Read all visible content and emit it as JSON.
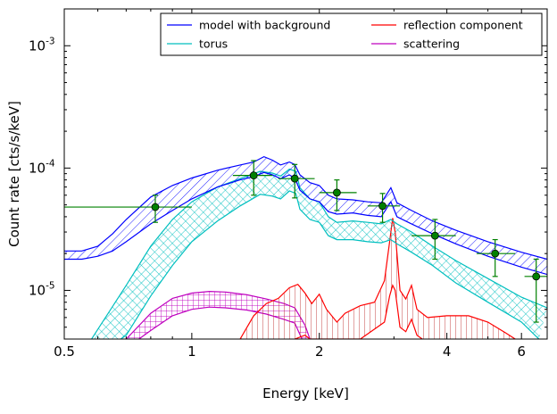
{
  "chart_data": {
    "type": "line",
    "xlabel": "Energy [keV]",
    "ylabel": "Count rate [cts/s/keV]",
    "x_scale": "log",
    "y_scale": "log",
    "xlim": [
      0.5,
      6.9
    ],
    "ylim": [
      4e-06,
      0.002
    ],
    "x_ticks": [
      {
        "value": 0.5,
        "label": "0.5"
      },
      {
        "value": 1,
        "label": "1"
      },
      {
        "value": 2,
        "label": "2"
      },
      {
        "value": 4,
        "label": "4"
      },
      {
        "value": 6,
        "label": "6"
      }
    ],
    "y_ticks": [
      {
        "value": 1e-05,
        "base": "10",
        "exp": "-5"
      },
      {
        "value": 0.0001,
        "base": "10",
        "exp": "-4"
      },
      {
        "value": 0.001,
        "base": "10",
        "exp": "-3"
      }
    ],
    "legend": {
      "placement": "top-right",
      "columns": 2,
      "entries": [
        {
          "label": "model with background",
          "color": "#0000ff"
        },
        {
          "label": "reflection component",
          "color": "#ff0000"
        },
        {
          "label": "torus",
          "color": "#00bfbf"
        },
        {
          "label": "scattering",
          "color": "#bf00bf"
        }
      ]
    },
    "series": [
      {
        "name": "model with background",
        "color": "#0000ff",
        "hatch": "diagonal",
        "upper": [
          [
            0.5,
            2.1e-05
          ],
          [
            0.55,
            2.1e-05
          ],
          [
            0.6,
            2.3e-05
          ],
          [
            0.65,
            2.9e-05
          ],
          [
            0.7,
            3.8e-05
          ],
          [
            0.8,
            5.8e-05
          ],
          [
            0.9,
            7.2e-05
          ],
          [
            1.0,
            8.3e-05
          ],
          [
            1.15,
            9.6e-05
          ],
          [
            1.3,
            0.000106
          ],
          [
            1.4,
            0.000112
          ],
          [
            1.48,
            0.000124
          ],
          [
            1.55,
            0.000116
          ],
          [
            1.62,
            0.000106
          ],
          [
            1.7,
            0.000112
          ],
          [
            1.75,
            0.000107
          ],
          [
            1.8,
            8.8e-05
          ],
          [
            1.9,
            7.6e-05
          ],
          [
            2.0,
            7.2e-05
          ],
          [
            2.1,
            6e-05
          ],
          [
            2.2,
            5.6e-05
          ],
          [
            2.4,
            5.5e-05
          ],
          [
            2.6,
            5.3e-05
          ],
          [
            2.8,
            5.2e-05
          ],
          [
            2.95,
            6.9e-05
          ],
          [
            3.05,
            5.2e-05
          ],
          [
            3.3,
            4.5e-05
          ],
          [
            3.7,
            3.7e-05
          ],
          [
            4.2,
            3.1e-05
          ],
          [
            5.0,
            2.5e-05
          ],
          [
            6.0,
            2.05e-05
          ],
          [
            6.9,
            1.8e-05
          ]
        ],
        "lower": [
          [
            0.5,
            1.8e-05
          ],
          [
            0.55,
            1.8e-05
          ],
          [
            0.6,
            1.9e-05
          ],
          [
            0.65,
            2.1e-05
          ],
          [
            0.7,
            2.5e-05
          ],
          [
            0.8,
            3.5e-05
          ],
          [
            0.9,
            4.5e-05
          ],
          [
            1.0,
            5.6e-05
          ],
          [
            1.15,
            7e-05
          ],
          [
            1.3,
            8e-05
          ],
          [
            1.4,
            8.5e-05
          ],
          [
            1.48,
            9.2e-05
          ],
          [
            1.55,
            8.8e-05
          ],
          [
            1.62,
            8.2e-05
          ],
          [
            1.7,
            8.8e-05
          ],
          [
            1.75,
            8.3e-05
          ],
          [
            1.8,
            6.6e-05
          ],
          [
            1.9,
            5.6e-05
          ],
          [
            2.0,
            5.3e-05
          ],
          [
            2.1,
            4.4e-05
          ],
          [
            2.2,
            4.2e-05
          ],
          [
            2.4,
            4.3e-05
          ],
          [
            2.6,
            4.1e-05
          ],
          [
            2.8,
            4e-05
          ],
          [
            2.95,
            5.3e-05
          ],
          [
            3.05,
            4e-05
          ],
          [
            3.3,
            3.5e-05
          ],
          [
            3.7,
            2.9e-05
          ],
          [
            4.2,
            2.4e-05
          ],
          [
            5.0,
            1.9e-05
          ],
          [
            6.0,
            1.55e-05
          ],
          [
            6.9,
            1.35e-05
          ]
        ]
      },
      {
        "name": "torus",
        "color": "#00bfbf",
        "hatch": "cross",
        "upper": [
          [
            0.58,
            4e-06
          ],
          [
            0.6,
            4.8e-06
          ],
          [
            0.7,
            1.1e-05
          ],
          [
            0.8,
            2.3e-05
          ],
          [
            0.9,
            3.8e-05
          ],
          [
            1.0,
            5.3e-05
          ],
          [
            1.15,
            7e-05
          ],
          [
            1.3,
            8.2e-05
          ],
          [
            1.45,
            9.4e-05
          ],
          [
            1.55,
            9.1e-05
          ],
          [
            1.62,
            8.6e-05
          ],
          [
            1.7,
            9.8e-05
          ],
          [
            1.76,
            9.4e-05
          ],
          [
            1.8,
            6.9e-05
          ],
          [
            1.9,
            5.6e-05
          ],
          [
            2.0,
            5.3e-05
          ],
          [
            2.1,
            4e-05
          ],
          [
            2.2,
            3.6e-05
          ],
          [
            2.4,
            3.7e-05
          ],
          [
            2.6,
            3.6e-05
          ],
          [
            2.8,
            3.5e-05
          ],
          [
            2.95,
            3.8e-05
          ],
          [
            3.05,
            3.5e-05
          ],
          [
            3.3,
            3e-05
          ],
          [
            3.7,
            2.3e-05
          ],
          [
            4.2,
            1.75e-05
          ],
          [
            5.0,
            1.25e-05
          ],
          [
            6.0,
            8.8e-06
          ],
          [
            6.9,
            7.2e-06
          ]
        ],
        "lower": [
          [
            0.68,
            4e-06
          ],
          [
            0.7,
            4.3e-06
          ],
          [
            0.8,
            9e-06
          ],
          [
            0.9,
            1.6e-05
          ],
          [
            1.0,
            2.5e-05
          ],
          [
            1.15,
            3.7e-05
          ],
          [
            1.3,
            4.9e-05
          ],
          [
            1.45,
            6.1e-05
          ],
          [
            1.55,
            5.9e-05
          ],
          [
            1.62,
            5.6e-05
          ],
          [
            1.7,
            6.5e-05
          ],
          [
            1.76,
            6.2e-05
          ],
          [
            1.8,
            4.6e-05
          ],
          [
            1.9,
            3.8e-05
          ],
          [
            2.0,
            3.6e-05
          ],
          [
            2.1,
            2.8e-05
          ],
          [
            2.2,
            2.6e-05
          ],
          [
            2.4,
            2.6e-05
          ],
          [
            2.6,
            2.5e-05
          ],
          [
            2.8,
            2.45e-05
          ],
          [
            2.95,
            2.6e-05
          ],
          [
            3.05,
            2.4e-05
          ],
          [
            3.3,
            2.05e-05
          ],
          [
            3.7,
            1.6e-05
          ],
          [
            4.2,
            1.15e-05
          ],
          [
            5.0,
            8e-06
          ],
          [
            6.0,
            5.5e-06
          ],
          [
            6.5,
            4.2e-06
          ],
          [
            6.6,
            4e-06
          ]
        ]
      },
      {
        "name": "scattering",
        "color": "#bf00bf",
        "hatch": "grid",
        "upper": [
          [
            0.7,
            4e-06
          ],
          [
            0.8,
            6.5e-06
          ],
          [
            0.9,
            8.6e-06
          ],
          [
            1.0,
            9.5e-06
          ],
          [
            1.1,
            9.8e-06
          ],
          [
            1.2,
            9.7e-06
          ],
          [
            1.35,
            9.2e-06
          ],
          [
            1.5,
            8.5e-06
          ],
          [
            1.65,
            7.8e-06
          ],
          [
            1.75,
            7.2e-06
          ],
          [
            1.85,
            5.2e-06
          ],
          [
            1.9,
            4e-06
          ]
        ],
        "lower": [
          [
            0.75,
            4e-06
          ],
          [
            0.8,
            4.7e-06
          ],
          [
            0.9,
            6.2e-06
          ],
          [
            1.0,
            7e-06
          ],
          [
            1.1,
            7.3e-06
          ],
          [
            1.2,
            7.2e-06
          ],
          [
            1.35,
            6.9e-06
          ],
          [
            1.5,
            6.4e-06
          ],
          [
            1.65,
            5.8e-06
          ],
          [
            1.75,
            5.4e-06
          ],
          [
            1.82,
            4e-06
          ]
        ]
      },
      {
        "name": "reflection component",
        "color": "#ff0000",
        "hatch": "vertical",
        "upper": [
          [
            1.3,
            4e-06
          ],
          [
            1.4,
            6.2e-06
          ],
          [
            1.5,
            7.8e-06
          ],
          [
            1.6,
            8.6e-06
          ],
          [
            1.7,
            1.05e-05
          ],
          [
            1.78,
            1.12e-05
          ],
          [
            1.85,
            9.5e-06
          ],
          [
            1.92,
            7.8e-06
          ],
          [
            2.0,
            9.3e-06
          ],
          [
            2.08,
            7e-06
          ],
          [
            2.2,
            5.5e-06
          ],
          [
            2.3,
            6.5e-06
          ],
          [
            2.5,
            7.5e-06
          ],
          [
            2.7,
            8e-06
          ],
          [
            2.85,
            1.2e-05
          ],
          [
            2.93,
            2.5e-05
          ],
          [
            2.98,
            3.9e-05
          ],
          [
            3.02,
            3e-05
          ],
          [
            3.1,
            1e-05
          ],
          [
            3.2,
            8.5e-06
          ],
          [
            3.3,
            1.1e-05
          ],
          [
            3.4,
            7e-06
          ],
          [
            3.6,
            6e-06
          ],
          [
            4.0,
            6.2e-06
          ],
          [
            4.5,
            6.2e-06
          ],
          [
            5.0,
            5.5e-06
          ],
          [
            5.5,
            4.5e-06
          ],
          [
            5.8,
            4e-06
          ]
        ],
        "lower": [
          [
            1.75,
            4e-06
          ],
          [
            1.85,
            4.3e-06
          ],
          [
            1.9,
            4e-06
          ],
          [
            2.5,
            4e-06
          ],
          [
            2.85,
            5.5e-06
          ],
          [
            2.93,
            9e-06
          ],
          [
            2.98,
            1.1e-05
          ],
          [
            3.02,
            1e-05
          ],
          [
            3.1,
            5e-06
          ],
          [
            3.2,
            4.6e-06
          ],
          [
            3.3,
            5.8e-06
          ],
          [
            3.4,
            4.3e-06
          ],
          [
            3.5,
            4e-06
          ]
        ]
      }
    ],
    "data_points": {
      "name": "data",
      "color": "#008000",
      "points": [
        {
          "x": 0.82,
          "y": 4.8e-05,
          "xerr": [
            0.5,
            1.0
          ],
          "yerr": [
            3.6e-05,
            6e-05
          ]
        },
        {
          "x": 1.4,
          "y": 8.7e-05,
          "xerr": [
            1.25,
            1.55
          ],
          "yerr": [
            6e-05,
            0.000115
          ]
        },
        {
          "x": 1.75,
          "y": 8.2e-05,
          "xerr": [
            1.6,
            1.95
          ],
          "yerr": [
            5.7e-05,
            0.000107
          ]
        },
        {
          "x": 2.2,
          "y": 6.3e-05,
          "xerr": [
            2.0,
            2.45
          ],
          "yerr": [
            4.5e-05,
            8e-05
          ]
        },
        {
          "x": 2.82,
          "y": 4.9e-05,
          "xerr": [
            2.6,
            3.1
          ],
          "yerr": [
            3.6e-05,
            6.2e-05
          ]
        },
        {
          "x": 3.75,
          "y": 2.8e-05,
          "xerr": [
            3.3,
            4.2
          ],
          "yerr": [
            1.8e-05,
            3.8e-05
          ]
        },
        {
          "x": 5.2,
          "y": 2e-05,
          "xerr": [
            4.7,
            5.8
          ],
          "yerr": [
            1.3e-05,
            2.6e-05
          ]
        },
        {
          "x": 6.5,
          "y": 1.3e-05,
          "xerr": [
            6.1,
            6.9
          ],
          "yerr": [
            5.5e-06,
            1.8e-05
          ]
        }
      ]
    }
  }
}
